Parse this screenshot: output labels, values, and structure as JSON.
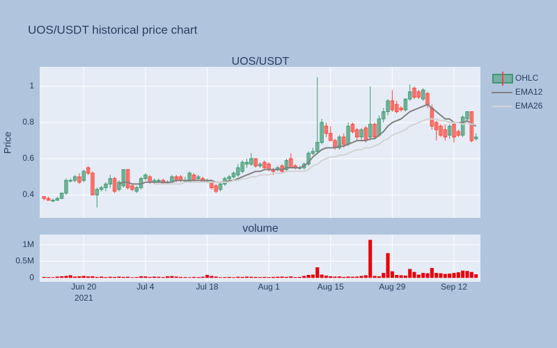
{
  "title": "UOS/USDT historical price chart",
  "chart_data": [
    {
      "type": "candlestick",
      "title": "UOS/USDT",
      "y_label": "Price",
      "x": [
        "2021-06-11",
        "2021-06-12",
        "2021-06-13",
        "2021-06-14",
        "2021-06-15",
        "2021-06-16",
        "2021-06-17",
        "2021-06-18",
        "2021-06-19",
        "2021-06-20",
        "2021-06-21",
        "2021-06-22",
        "2021-06-23",
        "2021-06-24",
        "2021-06-25",
        "2021-06-26",
        "2021-06-27",
        "2021-06-28",
        "2021-06-29",
        "2021-06-30",
        "2021-07-01",
        "2021-07-02",
        "2021-07-03",
        "2021-07-04",
        "2021-07-05",
        "2021-07-06",
        "2021-07-07",
        "2021-07-08",
        "2021-07-09",
        "2021-07-10",
        "2021-07-11",
        "2021-07-12",
        "2021-07-13",
        "2021-07-14",
        "2021-07-15",
        "2021-07-16",
        "2021-07-17",
        "2021-07-18",
        "2021-07-19",
        "2021-07-20",
        "2021-07-21",
        "2021-07-22",
        "2021-07-23",
        "2021-07-24",
        "2021-07-25",
        "2021-07-26",
        "2021-07-27",
        "2021-07-28",
        "2021-07-29",
        "2021-07-30",
        "2021-07-31",
        "2021-08-01",
        "2021-08-02",
        "2021-08-03",
        "2021-08-04",
        "2021-08-05",
        "2021-08-06",
        "2021-08-07",
        "2021-08-08",
        "2021-08-09",
        "2021-08-10",
        "2021-08-11",
        "2021-08-12",
        "2021-08-13",
        "2021-08-14",
        "2021-08-15",
        "2021-08-16",
        "2021-08-17",
        "2021-08-18",
        "2021-08-19",
        "2021-08-20",
        "2021-08-21",
        "2021-08-22",
        "2021-08-23",
        "2021-08-24",
        "2021-08-25",
        "2021-08-26",
        "2021-08-27",
        "2021-08-28",
        "2021-08-29",
        "2021-08-30",
        "2021-08-31",
        "2021-09-01",
        "2021-09-02",
        "2021-09-03",
        "2021-09-04",
        "2021-09-05",
        "2021-09-06",
        "2021-09-07",
        "2021-09-08",
        "2021-09-09",
        "2021-09-10",
        "2021-09-11",
        "2021-09-12",
        "2021-09-13",
        "2021-09-14",
        "2021-09-15",
        "2021-09-16",
        "2021-09-17"
      ],
      "series": [
        {
          "name": "OHLC",
          "type": "candlestick",
          "increasing_color": "#3d9970",
          "decreasing_color": "#ff4136",
          "open": [
            0.39,
            0.38,
            0.37,
            0.37,
            0.38,
            0.41,
            0.48,
            0.48,
            0.5,
            0.48,
            0.55,
            0.52,
            0.4,
            0.43,
            0.44,
            0.46,
            0.49,
            0.43,
            0.45,
            0.54,
            0.45,
            0.42,
            0.44,
            0.49,
            0.5,
            0.47,
            0.48,
            0.48,
            0.46,
            0.47,
            0.5,
            0.5,
            0.48,
            0.47,
            0.51,
            0.49,
            0.49,
            0.48,
            0.47,
            0.45,
            0.43,
            0.46,
            0.49,
            0.5,
            0.51,
            0.53,
            0.57,
            0.57,
            0.6,
            0.56,
            0.58,
            0.57,
            0.54,
            0.54,
            0.56,
            0.54,
            0.6,
            0.56,
            0.55,
            0.55,
            0.57,
            0.63,
            0.64,
            0.69,
            0.78,
            0.74,
            0.7,
            0.66,
            0.72,
            0.68,
            0.79,
            0.76,
            0.72,
            0.77,
            0.72,
            0.79,
            0.73,
            0.82,
            0.86,
            0.92,
            0.9,
            0.88,
            0.87,
            0.93,
            0.99,
            0.97,
            0.93,
            0.96,
            0.88,
            0.8,
            0.78,
            0.76,
            0.73,
            0.79,
            0.75,
            0.73,
            0.82,
            0.86,
            0.71
          ],
          "high": [
            0.39,
            0.39,
            0.38,
            0.39,
            0.41,
            0.49,
            0.49,
            0.51,
            0.52,
            0.54,
            0.56,
            0.53,
            0.44,
            0.45,
            0.47,
            0.51,
            0.5,
            0.48,
            0.54,
            0.54,
            0.46,
            0.45,
            0.5,
            0.52,
            0.51,
            0.49,
            0.49,
            0.49,
            0.48,
            0.51,
            0.51,
            0.51,
            0.5,
            0.53,
            0.52,
            0.51,
            0.5,
            0.49,
            0.48,
            0.46,
            0.47,
            0.5,
            0.51,
            0.53,
            0.57,
            0.59,
            0.6,
            0.63,
            0.6,
            0.58,
            0.59,
            0.58,
            0.55,
            0.56,
            0.57,
            0.6,
            0.63,
            0.57,
            0.56,
            0.58,
            0.64,
            0.66,
            1.05,
            0.82,
            0.8,
            0.78,
            0.71,
            0.73,
            0.74,
            0.8,
            0.8,
            0.77,
            0.77,
            0.78,
            1.0,
            0.8,
            0.84,
            0.88,
            0.93,
            0.98,
            0.92,
            0.89,
            0.93,
            1.01,
            1.0,
            0.98,
            0.99,
            0.97,
            0.9,
            0.81,
            0.79,
            0.79,
            0.79,
            0.8,
            0.76,
            0.84,
            0.86,
            0.86,
            0.74
          ],
          "low": [
            0.37,
            0.37,
            0.36,
            0.37,
            0.38,
            0.4,
            0.47,
            0.47,
            0.46,
            0.47,
            0.51,
            0.4,
            0.33,
            0.42,
            0.42,
            0.44,
            0.41,
            0.42,
            0.44,
            0.43,
            0.42,
            0.41,
            0.43,
            0.48,
            0.46,
            0.46,
            0.47,
            0.46,
            0.46,
            0.47,
            0.47,
            0.47,
            0.47,
            0.47,
            0.47,
            0.48,
            0.47,
            0.47,
            0.43,
            0.41,
            0.42,
            0.45,
            0.48,
            0.49,
            0.5,
            0.52,
            0.55,
            0.56,
            0.55,
            0.55,
            0.54,
            0.53,
            0.51,
            0.53,
            0.52,
            0.53,
            0.55,
            0.54,
            0.54,
            0.54,
            0.56,
            0.62,
            0.63,
            0.68,
            0.72,
            0.7,
            0.65,
            0.65,
            0.66,
            0.67,
            0.74,
            0.7,
            0.7,
            0.69,
            0.7,
            0.71,
            0.72,
            0.8,
            0.84,
            0.86,
            0.85,
            0.86,
            0.86,
            0.92,
            0.93,
            0.93,
            0.92,
            0.88,
            0.76,
            0.7,
            0.72,
            0.7,
            0.71,
            0.69,
            0.72,
            0.72,
            0.8,
            0.69,
            0.7
          ],
          "close": [
            0.38,
            0.37,
            0.37,
            0.38,
            0.41,
            0.48,
            0.48,
            0.5,
            0.47,
            0.53,
            0.52,
            0.4,
            0.43,
            0.44,
            0.46,
            0.49,
            0.42,
            0.47,
            0.54,
            0.44,
            0.43,
            0.44,
            0.49,
            0.51,
            0.47,
            0.48,
            0.48,
            0.46,
            0.47,
            0.5,
            0.48,
            0.48,
            0.48,
            0.52,
            0.48,
            0.5,
            0.47,
            0.48,
            0.44,
            0.42,
            0.46,
            0.49,
            0.5,
            0.52,
            0.55,
            0.58,
            0.58,
            0.6,
            0.56,
            0.57,
            0.55,
            0.54,
            0.53,
            0.55,
            0.53,
            0.59,
            0.55,
            0.55,
            0.55,
            0.57,
            0.63,
            0.64,
            0.69,
            0.8,
            0.74,
            0.7,
            0.66,
            0.72,
            0.68,
            0.78,
            0.75,
            0.72,
            0.76,
            0.7,
            0.79,
            0.72,
            0.82,
            0.86,
            0.92,
            0.87,
            0.86,
            0.87,
            0.93,
            0.97,
            0.94,
            0.94,
            0.98,
            0.9,
            0.78,
            0.76,
            0.73,
            0.72,
            0.78,
            0.72,
            0.73,
            0.83,
            0.86,
            0.7,
            0.72
          ]
        },
        {
          "name": "EMA12",
          "type": "line",
          "color": "#808080",
          "values": [
            null,
            null,
            null,
            null,
            null,
            null,
            null,
            null,
            null,
            null,
            null,
            null,
            null,
            null,
            null,
            null,
            null,
            0.46,
            0.47,
            0.47,
            0.46,
            0.46,
            0.46,
            0.47,
            0.47,
            0.47,
            0.47,
            0.47,
            0.47,
            0.47,
            0.48,
            0.48,
            0.48,
            0.48,
            0.48,
            0.48,
            0.48,
            0.48,
            0.48,
            0.47,
            0.47,
            0.47,
            0.48,
            0.48,
            0.49,
            0.5,
            0.51,
            0.52,
            0.53,
            0.53,
            0.54,
            0.54,
            0.54,
            0.54,
            0.54,
            0.55,
            0.55,
            0.55,
            0.55,
            0.56,
            0.58,
            0.61,
            0.63,
            0.65,
            0.66,
            0.66,
            0.66,
            0.67,
            0.67,
            0.68,
            0.69,
            0.7,
            0.7,
            0.7,
            0.71,
            0.71,
            0.73,
            0.75,
            0.78,
            0.8,
            0.81,
            0.82,
            0.84,
            0.86,
            0.87,
            0.88,
            0.89,
            0.9,
            0.88,
            0.86,
            0.84,
            0.82,
            0.82,
            0.8,
            0.8,
            0.8,
            0.81,
            0.79,
            0.78
          ]
        },
        {
          "name": "EMA26",
          "type": "line",
          "color": "#d3d3d3",
          "values": [
            null,
            null,
            null,
            null,
            null,
            null,
            null,
            null,
            null,
            null,
            null,
            null,
            null,
            null,
            null,
            null,
            null,
            null,
            null,
            null,
            null,
            null,
            null,
            null,
            null,
            0.46,
            0.46,
            0.46,
            0.46,
            0.46,
            0.46,
            0.46,
            0.47,
            0.47,
            0.47,
            0.47,
            0.47,
            0.47,
            0.47,
            0.47,
            0.47,
            0.47,
            0.47,
            0.48,
            0.48,
            0.49,
            0.49,
            0.5,
            0.5,
            0.51,
            0.51,
            0.51,
            0.52,
            0.52,
            0.52,
            0.53,
            0.53,
            0.53,
            0.53,
            0.53,
            0.54,
            0.56,
            0.57,
            0.59,
            0.6,
            0.61,
            0.61,
            0.62,
            0.62,
            0.63,
            0.64,
            0.65,
            0.65,
            0.66,
            0.66,
            0.67,
            0.68,
            0.7,
            0.71,
            0.73,
            0.74,
            0.75,
            0.76,
            0.78,
            0.79,
            0.8,
            0.81,
            0.82,
            0.82,
            0.82,
            0.81,
            0.81,
            0.8,
            0.8,
            0.8,
            0.79,
            0.8,
            0.79,
            0.79
          ]
        }
      ],
      "xlim": [
        "2021-06-10",
        "2021-09-18"
      ],
      "xticks": [
        "2021-06-20",
        "2021-07-04",
        "2021-07-18",
        "2021-08-01",
        "2021-08-15",
        "2021-08-29",
        "2021-09-12"
      ],
      "ylim": [
        0.273,
        1.108
      ],
      "yticks": [
        0.4,
        0.6,
        0.8,
        1
      ],
      "grid": true
    },
    {
      "type": "bar",
      "title": "volume",
      "color": "#e8000b",
      "x": [
        "2021-06-11",
        "2021-06-12",
        "2021-06-13",
        "2021-06-14",
        "2021-06-15",
        "2021-06-16",
        "2021-06-17",
        "2021-06-18",
        "2021-06-19",
        "2021-06-20",
        "2021-06-21",
        "2021-06-22",
        "2021-06-23",
        "2021-06-24",
        "2021-06-25",
        "2021-06-26",
        "2021-06-27",
        "2021-06-28",
        "2021-06-29",
        "2021-06-30",
        "2021-07-01",
        "2021-07-02",
        "2021-07-03",
        "2021-07-04",
        "2021-07-05",
        "2021-07-06",
        "2021-07-07",
        "2021-07-08",
        "2021-07-09",
        "2021-07-10",
        "2021-07-11",
        "2021-07-12",
        "2021-07-13",
        "2021-07-14",
        "2021-07-15",
        "2021-07-16",
        "2021-07-17",
        "2021-07-18",
        "2021-07-19",
        "2021-07-20",
        "2021-07-21",
        "2021-07-22",
        "2021-07-23",
        "2021-07-24",
        "2021-07-25",
        "2021-07-26",
        "2021-07-27",
        "2021-07-28",
        "2021-07-29",
        "2021-07-30",
        "2021-07-31",
        "2021-08-01",
        "2021-08-02",
        "2021-08-03",
        "2021-08-04",
        "2021-08-05",
        "2021-08-06",
        "2021-08-07",
        "2021-08-08",
        "2021-08-09",
        "2021-08-10",
        "2021-08-11",
        "2021-08-12",
        "2021-08-13",
        "2021-08-14",
        "2021-08-15",
        "2021-08-16",
        "2021-08-17",
        "2021-08-18",
        "2021-08-19",
        "2021-08-20",
        "2021-08-21",
        "2021-08-22",
        "2021-08-23",
        "2021-08-24",
        "2021-08-25",
        "2021-08-26",
        "2021-08-27",
        "2021-08-28",
        "2021-08-29",
        "2021-08-30",
        "2021-08-31",
        "2021-09-01",
        "2021-09-02",
        "2021-09-03",
        "2021-09-04",
        "2021-09-05",
        "2021-09-06",
        "2021-09-07",
        "2021-09-08",
        "2021-09-09",
        "2021-09-10",
        "2021-09-11",
        "2021-09-12",
        "2021-09-13",
        "2021-09-14",
        "2021-09-15",
        "2021-09-16",
        "2021-09-17"
      ],
      "values": [
        30000,
        25000,
        20000,
        40000,
        50000,
        60000,
        80000,
        40000,
        50000,
        60000,
        45000,
        50000,
        30000,
        40000,
        25000,
        35000,
        30000,
        40000,
        30000,
        35000,
        20000,
        25000,
        50000,
        45000,
        30000,
        40000,
        35000,
        25000,
        50000,
        55000,
        40000,
        30000,
        25000,
        20000,
        30000,
        25000,
        35000,
        90000,
        60000,
        40000,
        20000,
        25000,
        30000,
        20000,
        35000,
        30000,
        40000,
        35000,
        30000,
        25000,
        30000,
        25000,
        30000,
        35000,
        40000,
        30000,
        45000,
        25000,
        30000,
        60000,
        90000,
        100000,
        320000,
        100000,
        70000,
        50000,
        40000,
        45000,
        30000,
        40000,
        35000,
        40000,
        60000,
        80000,
        1150000,
        60000,
        50000,
        150000,
        750000,
        200000,
        90000,
        80000,
        70000,
        270000,
        180000,
        100000,
        150000,
        140000,
        300000,
        150000,
        140000,
        120000,
        130000,
        150000,
        170000,
        220000,
        210000,
        180000,
        110000
      ],
      "xlim": [
        "2021-06-10",
        "2021-09-18"
      ],
      "xticks": [
        {
          "value": "2021-06-20",
          "label": "Jun 20"
        },
        {
          "value": "2021-07-04",
          "label": "Jul 4"
        },
        {
          "value": "2021-07-18",
          "label": "Jul 18"
        },
        {
          "value": "2021-08-01",
          "label": "Aug 1"
        },
        {
          "value": "2021-08-15",
          "label": "Aug 15"
        },
        {
          "value": "2021-08-29",
          "label": "Aug 29"
        },
        {
          "value": "2021-09-12",
          "label": "Sep 12"
        }
      ],
      "x_year": "2021",
      "ylim": [
        -120000,
        1310000
      ],
      "yticks": [
        {
          "value": 0,
          "label": "0"
        },
        {
          "value": 500000,
          "label": "0.5M"
        },
        {
          "value": 1000000,
          "label": "1M"
        }
      ],
      "grid": true
    }
  ]
}
